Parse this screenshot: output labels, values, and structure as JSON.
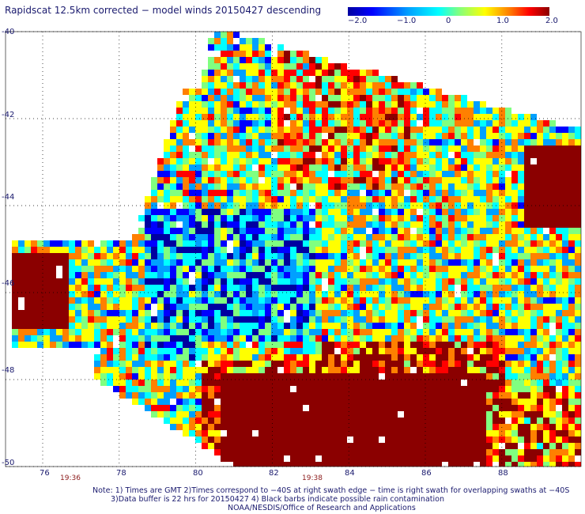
{
  "title": "Rapidscat 12.5km corrected − model winds 20150427 descending",
  "colorbar": {
    "ticks": [
      "−2.0",
      "−1.0",
      "0",
      "1.0",
      "2.0"
    ],
    "values": [
      -2.0,
      -1.0,
      0,
      1.0,
      2.0
    ],
    "colors": [
      "#0000a0",
      "#0000ff",
      "#00a0ff",
      "#00ffff",
      "#80ff80",
      "#ffff00",
      "#ff8000",
      "#ff0000",
      "#8b0000"
    ]
  },
  "axes": {
    "y_ticks": [
      "-40",
      "-42",
      "-44",
      "-46",
      "-48",
      "-50"
    ],
    "x_ticks": [
      "76",
      "78",
      "80",
      "82",
      "84",
      "86",
      "88"
    ]
  },
  "time_tags": [
    "19:36",
    "19:38"
  ],
  "notes": [
    "Note: 1) Times are GMT 2)Times correspond to −40S at right swath edge − time is right swath for overlapping swaths at −40S",
    "3)Data buffer is 22 hrs for 20150427 4) Black barbs indicate possible rain contamination",
    "NOAA/NESDIS/Office of Research and Applications"
  ],
  "chart_data": {
    "type": "heatmap",
    "title": "Rapidscat 12.5km corrected − model winds 20150427 descending",
    "xlabel": "",
    "ylabel": "",
    "xlim": [
      75,
      90
    ],
    "ylim": [
      -50,
      -40
    ],
    "x_ticks": [
      76,
      78,
      80,
      82,
      84,
      86,
      88
    ],
    "y_ticks": [
      -40,
      -42,
      -44,
      -46,
      -48,
      -50
    ],
    "value_range": [
      -2.0,
      2.0
    ],
    "grid": true,
    "regions": [
      {
        "area": "south-central 81-87E, 48-50S",
        "value": 2.0
      },
      {
        "area": "west edge 75-76.5E, 45-46.5S",
        "value": 2.0
      },
      {
        "area": "east edge 88.5-90E, 42.5-44.5S",
        "value": 2.0
      },
      {
        "area": "central 79-83E, 44-47S",
        "value": -1.5
      },
      {
        "area": "north 82-85E, 40.5-43S",
        "value": 0.5
      }
    ]
  }
}
